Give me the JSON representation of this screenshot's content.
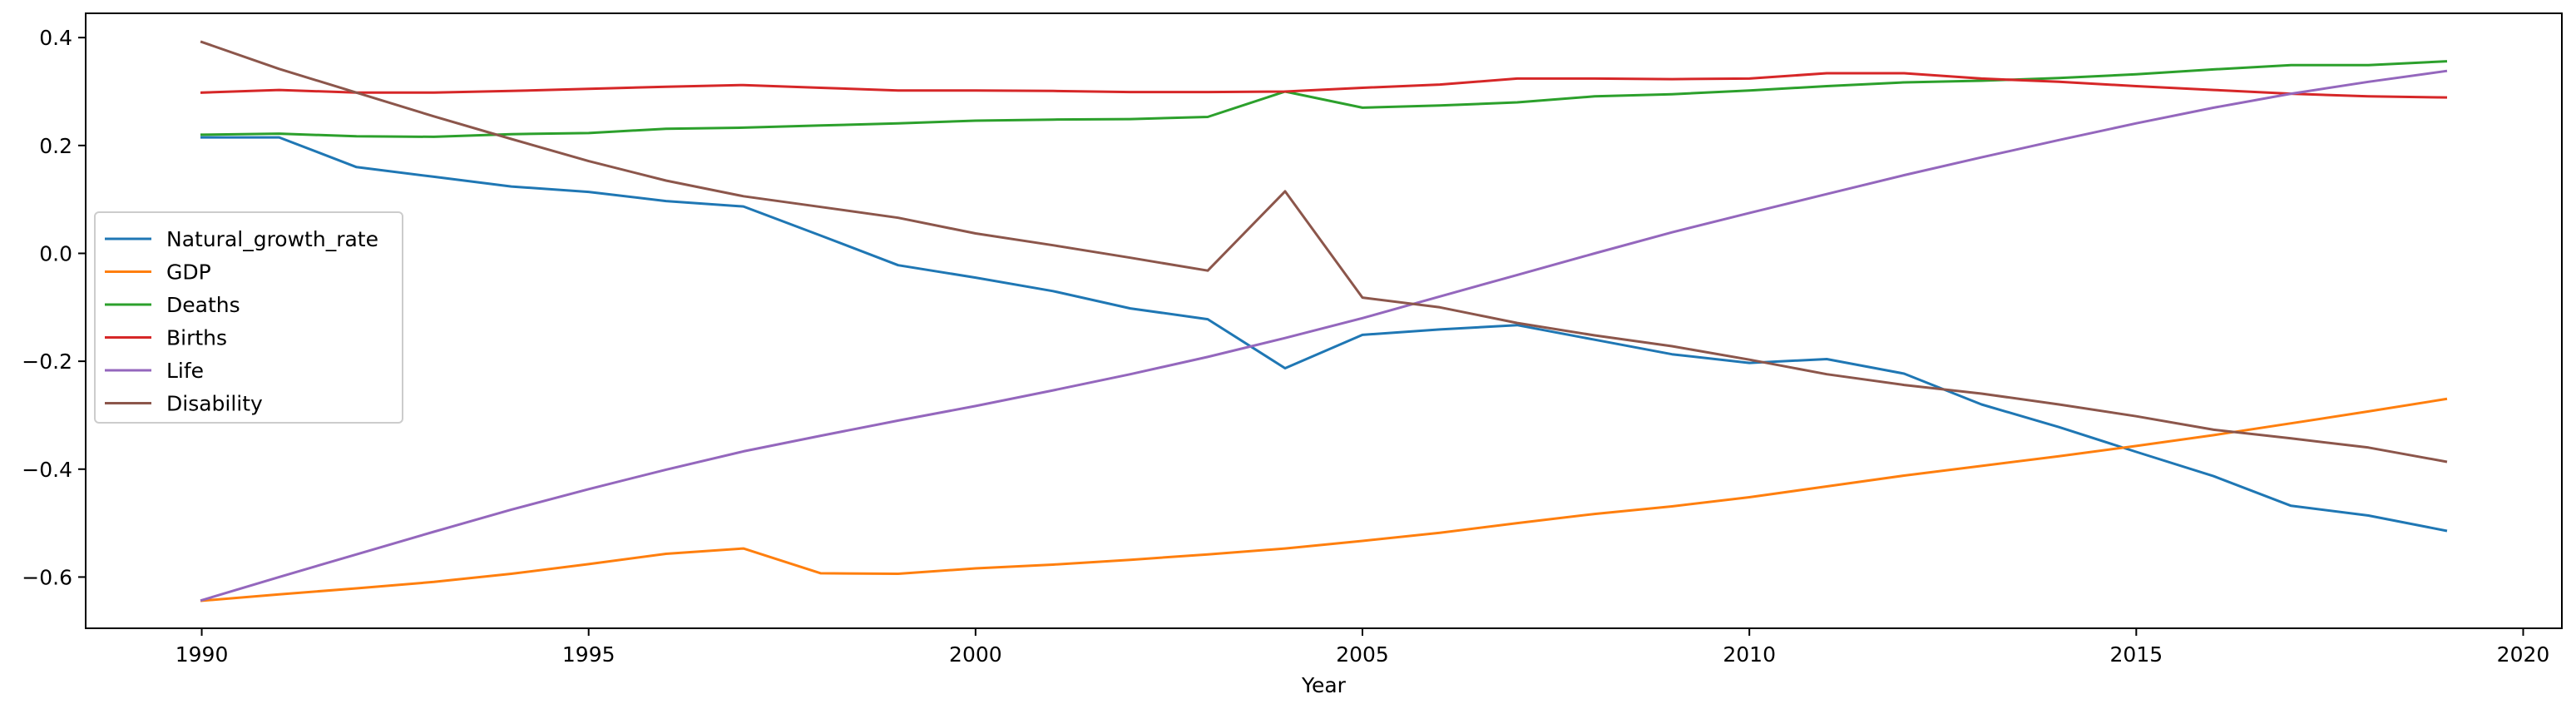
{
  "chart_data": {
    "type": "line",
    "title": "",
    "xlabel": "Year",
    "ylabel": "",
    "xlim": [
      1988.5,
      2020.5
    ],
    "ylim": [
      -0.695,
      0.445
    ],
    "xticks": [
      1990,
      1995,
      2000,
      2005,
      2010,
      2015,
      2020
    ],
    "yticks": [
      0.4,
      0.2,
      0.0,
      -0.2,
      -0.4,
      -0.6
    ],
    "ytick_labels": [
      "0.4",
      "0.2",
      "0.0",
      "−0.2",
      "−0.4",
      "−0.6"
    ],
    "grid": false,
    "legend_position": "center-left",
    "x": [
      1990,
      1991,
      1992,
      1993,
      1994,
      1995,
      1996,
      1997,
      1998,
      1999,
      2000,
      2001,
      2002,
      2003,
      2004,
      2005,
      2006,
      2007,
      2008,
      2009,
      2010,
      2011,
      2012,
      2013,
      2014,
      2015,
      2016,
      2017,
      2018,
      2019
    ],
    "series": [
      {
        "name": "Natural_growth_rate",
        "color": "#1f77b4",
        "values": [
          0.215,
          0.215,
          0.16,
          0.142,
          0.124,
          0.114,
          0.097,
          0.087,
          0.033,
          -0.022,
          -0.045,
          -0.07,
          -0.102,
          -0.122,
          -0.213,
          -0.151,
          -0.141,
          -0.133,
          -0.16,
          -0.187,
          -0.203,
          -0.196,
          -0.223,
          -0.28,
          -0.322,
          -0.368,
          -0.413,
          -0.468,
          -0.486,
          -0.514
        ]
      },
      {
        "name": "GDP",
        "color": "#ff7f0e",
        "values": [
          -0.644,
          -0.632,
          -0.621,
          -0.609,
          -0.594,
          -0.576,
          -0.557,
          -0.547,
          -0.593,
          -0.594,
          -0.584,
          -0.577,
          -0.568,
          -0.558,
          -0.547,
          -0.533,
          -0.518,
          -0.5,
          -0.483,
          -0.469,
          -0.452,
          -0.432,
          -0.412,
          -0.394,
          -0.376,
          -0.357,
          -0.337,
          -0.315,
          -0.293,
          -0.27
        ]
      },
      {
        "name": "Deaths",
        "color": "#2ca02c",
        "values": [
          0.22,
          0.222,
          0.217,
          0.216,
          0.221,
          0.223,
          0.231,
          0.233,
          0.237,
          0.241,
          0.246,
          0.248,
          0.249,
          0.253,
          0.3,
          0.27,
          0.274,
          0.28,
          0.291,
          0.295,
          0.302,
          0.31,
          0.317,
          0.32,
          0.325,
          0.332,
          0.341,
          0.349,
          0.349,
          0.356
        ]
      },
      {
        "name": "Births",
        "color": "#d62728",
        "values": [
          0.298,
          0.303,
          0.298,
          0.298,
          0.301,
          0.305,
          0.309,
          0.312,
          0.307,
          0.302,
          0.302,
          0.301,
          0.299,
          0.299,
          0.3,
          0.307,
          0.313,
          0.324,
          0.324,
          0.323,
          0.324,
          0.334,
          0.334,
          0.324,
          0.318,
          0.31,
          0.303,
          0.296,
          0.291,
          0.289
        ]
      },
      {
        "name": "Life",
        "color": "#9467bd",
        "values": [
          -0.643,
          -0.6,
          -0.558,
          -0.516,
          -0.475,
          -0.437,
          -0.401,
          -0.367,
          -0.338,
          -0.31,
          -0.283,
          -0.254,
          -0.224,
          -0.192,
          -0.157,
          -0.12,
          -0.08,
          -0.04,
          0.0,
          0.039,
          0.075,
          0.11,
          0.145,
          0.178,
          0.21,
          0.241,
          0.27,
          0.296,
          0.318,
          0.338
        ]
      },
      {
        "name": "Disability",
        "color": "#8c564b",
        "values": [
          0.392,
          0.342,
          0.298,
          0.254,
          0.212,
          0.171,
          0.135,
          0.106,
          0.086,
          0.066,
          0.037,
          0.015,
          -0.008,
          -0.032,
          0.115,
          -0.082,
          -0.1,
          -0.129,
          -0.152,
          -0.172,
          -0.197,
          -0.224,
          -0.244,
          -0.26,
          -0.28,
          -0.302,
          -0.327,
          -0.343,
          -0.36,
          -0.386
        ]
      }
    ]
  }
}
